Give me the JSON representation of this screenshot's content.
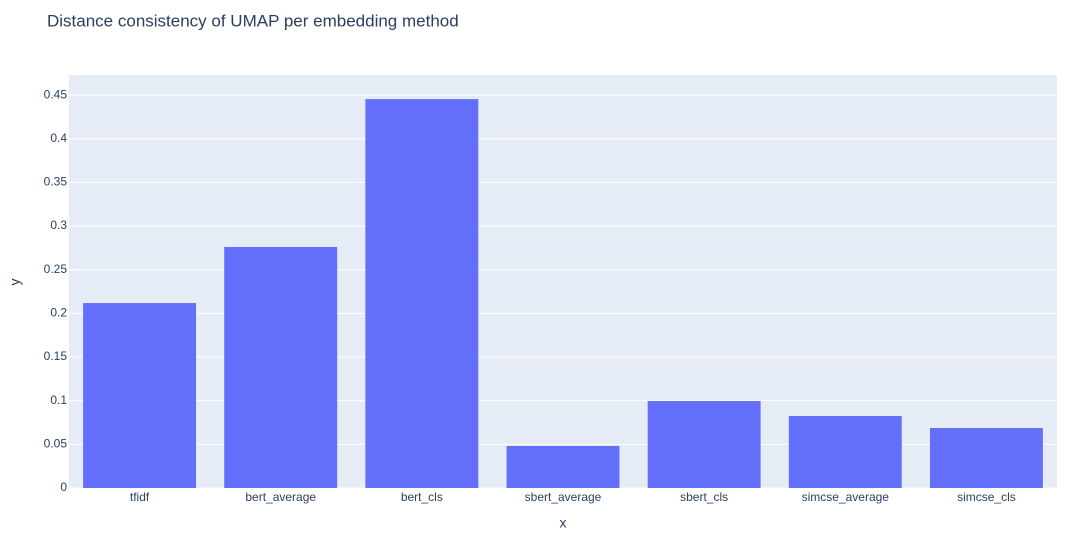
{
  "chart_data": {
    "type": "bar",
    "title": "Distance consistency of UMAP per embedding method",
    "x_label": "x",
    "y_label": "y",
    "categories": [
      "tfidf",
      "bert_average",
      "bert_cls",
      "sbert_average",
      "sbert_cls",
      "simcse_average",
      "simcse_cls"
    ],
    "values": [
      0.2118,
      0.276,
      0.4454,
      0.0481,
      0.0996,
      0.0824,
      0.0687
    ],
    "color": "#636efa",
    "ylim": [
      0,
      0.473
    ],
    "yticks": [
      0,
      0.05,
      0.1,
      0.15,
      0.2,
      0.25,
      0.3,
      0.35,
      0.4,
      0.45
    ],
    "grid": true
  }
}
